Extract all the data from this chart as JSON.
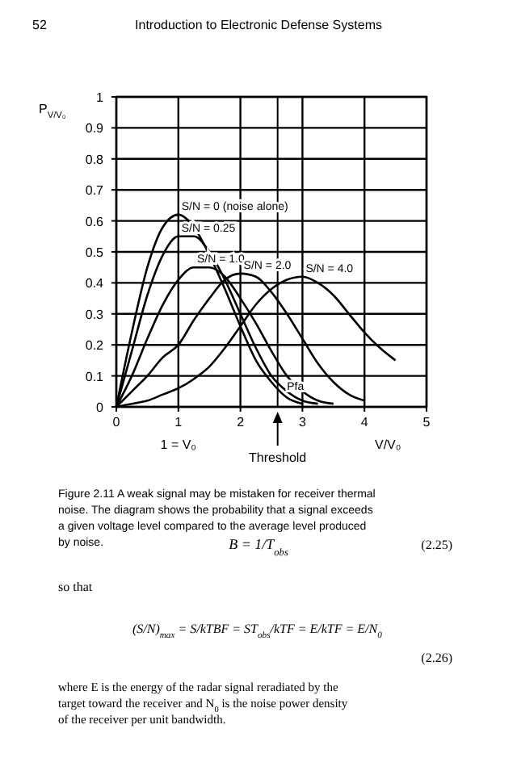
{
  "chart_data": {
    "type": "line",
    "ylabel": "P$_{V/V₀}$",
    "xlabel": "V/V₀",
    "xlim": [
      0,
      5
    ],
    "xticks": [
      0,
      1,
      2,
      3,
      4,
      5
    ],
    "ylim": [
      0,
      1
    ],
    "yticks": [
      0,
      0.1,
      0.2,
      0.3,
      0.4,
      0.5,
      0.6,
      0.7,
      0.8,
      0.9,
      1
    ],
    "grid": true,
    "marker": "none",
    "line_style": "solid",
    "legend": false,
    "series": [
      {
        "name": "S/N = 0 (noise alone)",
        "color": "#000000",
        "x": [
          0,
          0.25,
          0.5,
          0.75,
          1,
          1.25,
          1.5,
          1.75,
          2,
          2.25,
          2.5,
          2.75,
          3
        ],
        "values": [
          0,
          0.24,
          0.45,
          0.58,
          0.62,
          0.58,
          0.49,
          0.38,
          0.26,
          0.15,
          0.08,
          0.03,
          0.01
        ]
      },
      {
        "name": "S/N = 0.25",
        "color": "#000000",
        "x": [
          0,
          0.25,
          0.5,
          0.75,
          1,
          1.25,
          1.5,
          1.75,
          2,
          2.25,
          2.5,
          2.75,
          3,
          3.25
        ],
        "values": [
          0,
          0.18,
          0.36,
          0.49,
          0.55,
          0.55,
          0.5,
          0.41,
          0.3,
          0.19,
          0.1,
          0.05,
          0.02,
          0.01
        ]
      },
      {
        "name": "S/N = 1.0",
        "color": "#000000",
        "x": [
          0,
          0.25,
          0.5,
          0.75,
          1,
          1.25,
          1.5,
          1.75,
          2,
          2.25,
          2.5,
          2.75,
          3,
          3.25,
          3.5
        ],
        "values": [
          0,
          0.1,
          0.22,
          0.33,
          0.41,
          0.45,
          0.45,
          0.42,
          0.35,
          0.27,
          0.18,
          0.1,
          0.05,
          0.02,
          0.01
        ]
      },
      {
        "name": "S/N = 2.0",
        "color": "#000000",
        "x": [
          0,
          0.25,
          0.5,
          0.75,
          1,
          1.25,
          1.5,
          1.75,
          2,
          2.25,
          2.5,
          2.75,
          3,
          3.25,
          3.5,
          3.75,
          4
        ],
        "values": [
          0,
          0.05,
          0.1,
          0.16,
          0.2,
          0.28,
          0.35,
          0.41,
          0.43,
          0.42,
          0.37,
          0.3,
          0.22,
          0.14,
          0.08,
          0.04,
          0.02
        ]
      },
      {
        "name": "S/N = 4.0",
        "color": "#000000",
        "x": [
          0,
          0.25,
          0.5,
          0.75,
          1,
          1.25,
          1.5,
          1.75,
          2,
          2.25,
          2.5,
          2.75,
          3,
          3.25,
          3.5,
          3.75,
          4,
          4.25,
          4.5
        ],
        "values": [
          0,
          0.01,
          0.02,
          0.04,
          0.06,
          0.09,
          0.13,
          0.19,
          0.26,
          0.33,
          0.38,
          0.41,
          0.42,
          0.4,
          0.36,
          0.3,
          0.24,
          0.19,
          0.15
        ]
      }
    ],
    "ref_lines": [
      {
        "axis": "x",
        "value": 2.6,
        "label": "Threshold"
      }
    ],
    "annotations": [
      {
        "text": "Pfa",
        "x": 2.75,
        "y": 0.07
      },
      "1 = V₀",
      "52",
      "Introduction to Electronic Defense Systems",
      "Figure 2.11 A weak signal may be mistaken for receiver thermal noise. The diagram shows the probability that a signal exceeds a given voltage level compared to the average level produced by noise.",
      "B = 1/T$_{obs}$",
      "(2.25)",
      "so that",
      "(S/N)$_{max}$ = S/kTBF = ST$_{obs}$/kTF = E/kTF = E/N$_{0}$",
      "(2.26)",
      "where E is the energy of the radar signal reradiated by the target toward the receiver and N$_{0}$ is the noise power density of the receiver per unit bandwidth."
    ]
  }
}
